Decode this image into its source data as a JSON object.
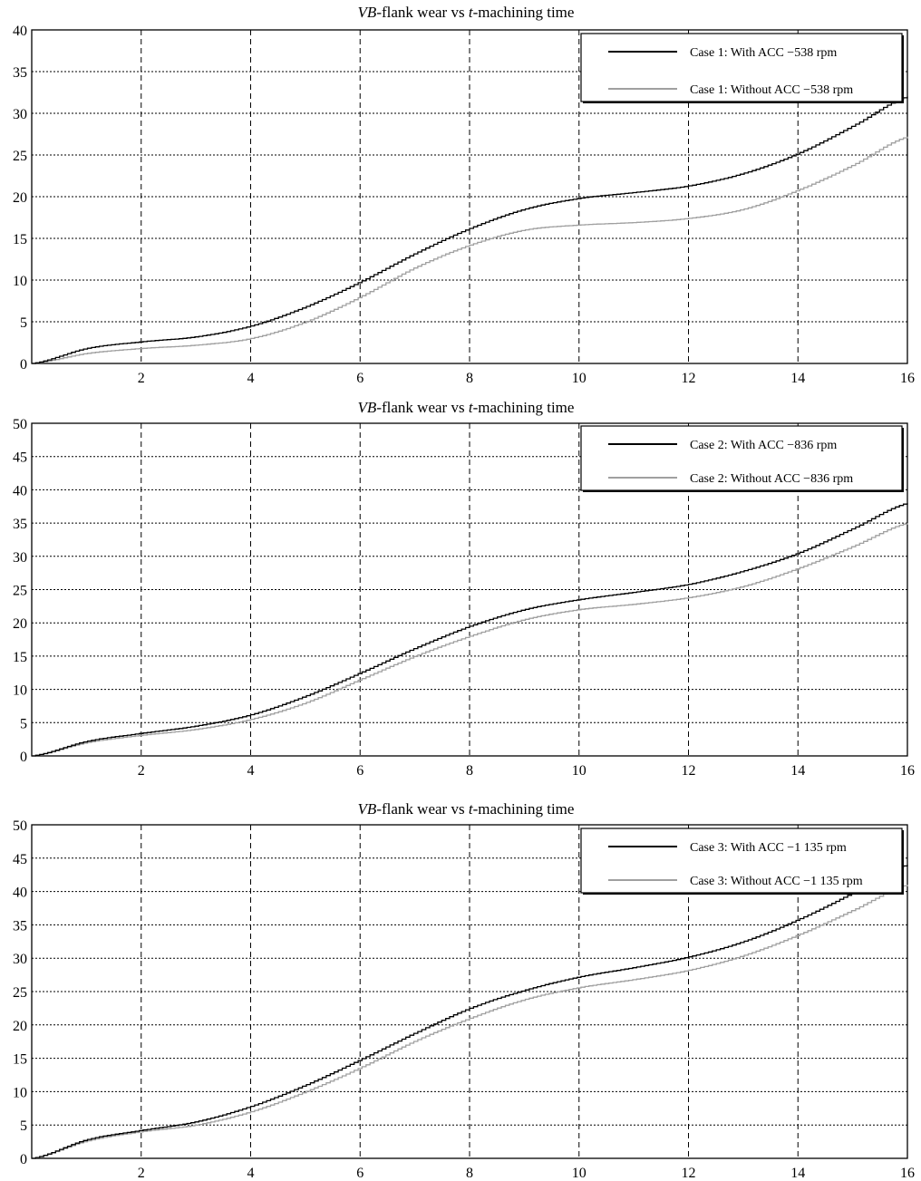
{
  "chart_data": [
    {
      "type": "line",
      "title": "VB-flank wear vs t-machining time",
      "title_italic_prefix": "VB",
      "title_middle": "-flank wear vs ",
      "title_italic_var": "t",
      "title_suffix": "-machining time",
      "xlim": [
        0,
        16
      ],
      "ylim": [
        0,
        40
      ],
      "xticks": [
        2,
        4,
        6,
        8,
        10,
        12,
        14,
        16
      ],
      "yticks": [
        0,
        5,
        10,
        15,
        20,
        25,
        30,
        35,
        40
      ],
      "grid": true,
      "legend_position": "top-right",
      "x": [
        0,
        1,
        2,
        3,
        4,
        5,
        6,
        7,
        8,
        9,
        10,
        11,
        12,
        13,
        14,
        15,
        16
      ],
      "series": [
        {
          "name": "Case 1: With ACC −538 rpm",
          "color": "#000000",
          "values": [
            0,
            1.8,
            2.6,
            3.2,
            4.5,
            6.8,
            9.8,
            13.2,
            16.2,
            18.5,
            19.8,
            20.5,
            21.3,
            22.8,
            25.2,
            28.5,
            32
          ]
        },
        {
          "name": "Case 1: Without ACC −538 rpm",
          "color": "#a0a0a0",
          "values": [
            0,
            1.2,
            1.8,
            2.2,
            3.0,
            5.0,
            8.0,
            11.5,
            14.2,
            16.0,
            16.6,
            16.9,
            17.4,
            18.5,
            20.8,
            23.8,
            27.2
          ]
        }
      ]
    },
    {
      "type": "line",
      "title": "VB-flank wear vs t-machining time",
      "title_italic_prefix": "VB",
      "title_middle": "-flank wear vs ",
      "title_italic_var": "t",
      "title_suffix": "-machining time",
      "xlim": [
        0,
        16
      ],
      "ylim": [
        0,
        50
      ],
      "xticks": [
        2,
        4,
        6,
        8,
        10,
        12,
        14,
        16
      ],
      "yticks": [
        0,
        5,
        10,
        15,
        20,
        25,
        30,
        35,
        40,
        45,
        50
      ],
      "grid": true,
      "legend_position": "top-right",
      "x": [
        0,
        1,
        2,
        3,
        4,
        5,
        6,
        7,
        8,
        9,
        10,
        11,
        12,
        13,
        14,
        15,
        16
      ],
      "series": [
        {
          "name": "Case 2: With ACC −836 rpm",
          "color": "#000000",
          "values": [
            0,
            2.2,
            3.4,
            4.5,
            6.2,
            9.0,
            12.5,
            16.2,
            19.5,
            22.0,
            23.5,
            24.6,
            25.8,
            27.8,
            30.5,
            34.2,
            38
          ]
        },
        {
          "name": "Case 2: Without ACC −836 rpm",
          "color": "#a0a0a0",
          "values": [
            0,
            2.0,
            3.1,
            4.0,
            5.5,
            8.0,
            11.5,
            15.0,
            18.0,
            20.5,
            22.0,
            22.8,
            23.8,
            25.5,
            28.2,
            31.5,
            35
          ]
        }
      ]
    },
    {
      "type": "line",
      "title": "VB-flank wear vs t-machining time",
      "title_italic_prefix": "VB",
      "title_middle": "-flank wear vs ",
      "title_italic_var": "t",
      "title_suffix": "-machining time",
      "xlim": [
        0,
        16
      ],
      "ylim": [
        0,
        50
      ],
      "xticks": [
        2,
        4,
        6,
        8,
        10,
        12,
        14,
        16
      ],
      "yticks": [
        0,
        5,
        10,
        15,
        20,
        25,
        30,
        35,
        40,
        45,
        50
      ],
      "grid": true,
      "legend_position": "top-right",
      "x": [
        0,
        1,
        2,
        3,
        4,
        5,
        6,
        7,
        8,
        9,
        10,
        11,
        12,
        13,
        14,
        15,
        16
      ],
      "series": [
        {
          "name": "Case 3: With ACC −1 135 rpm",
          "color": "#000000",
          "values": [
            0,
            2.8,
            4.2,
            5.5,
            7.8,
            11.0,
            14.8,
            18.8,
            22.5,
            25.2,
            27.2,
            28.6,
            30.2,
            32.5,
            35.8,
            39.8,
            44
          ]
        },
        {
          "name": "Case 3: Without ACC −1 135 rpm",
          "color": "#a0a0a0",
          "values": [
            0,
            2.6,
            4.0,
            5.0,
            7.0,
            10.0,
            13.6,
            17.6,
            21.0,
            23.8,
            25.6,
            26.8,
            28.2,
            30.4,
            33.5,
            37.2,
            41
          ]
        }
      ]
    }
  ]
}
